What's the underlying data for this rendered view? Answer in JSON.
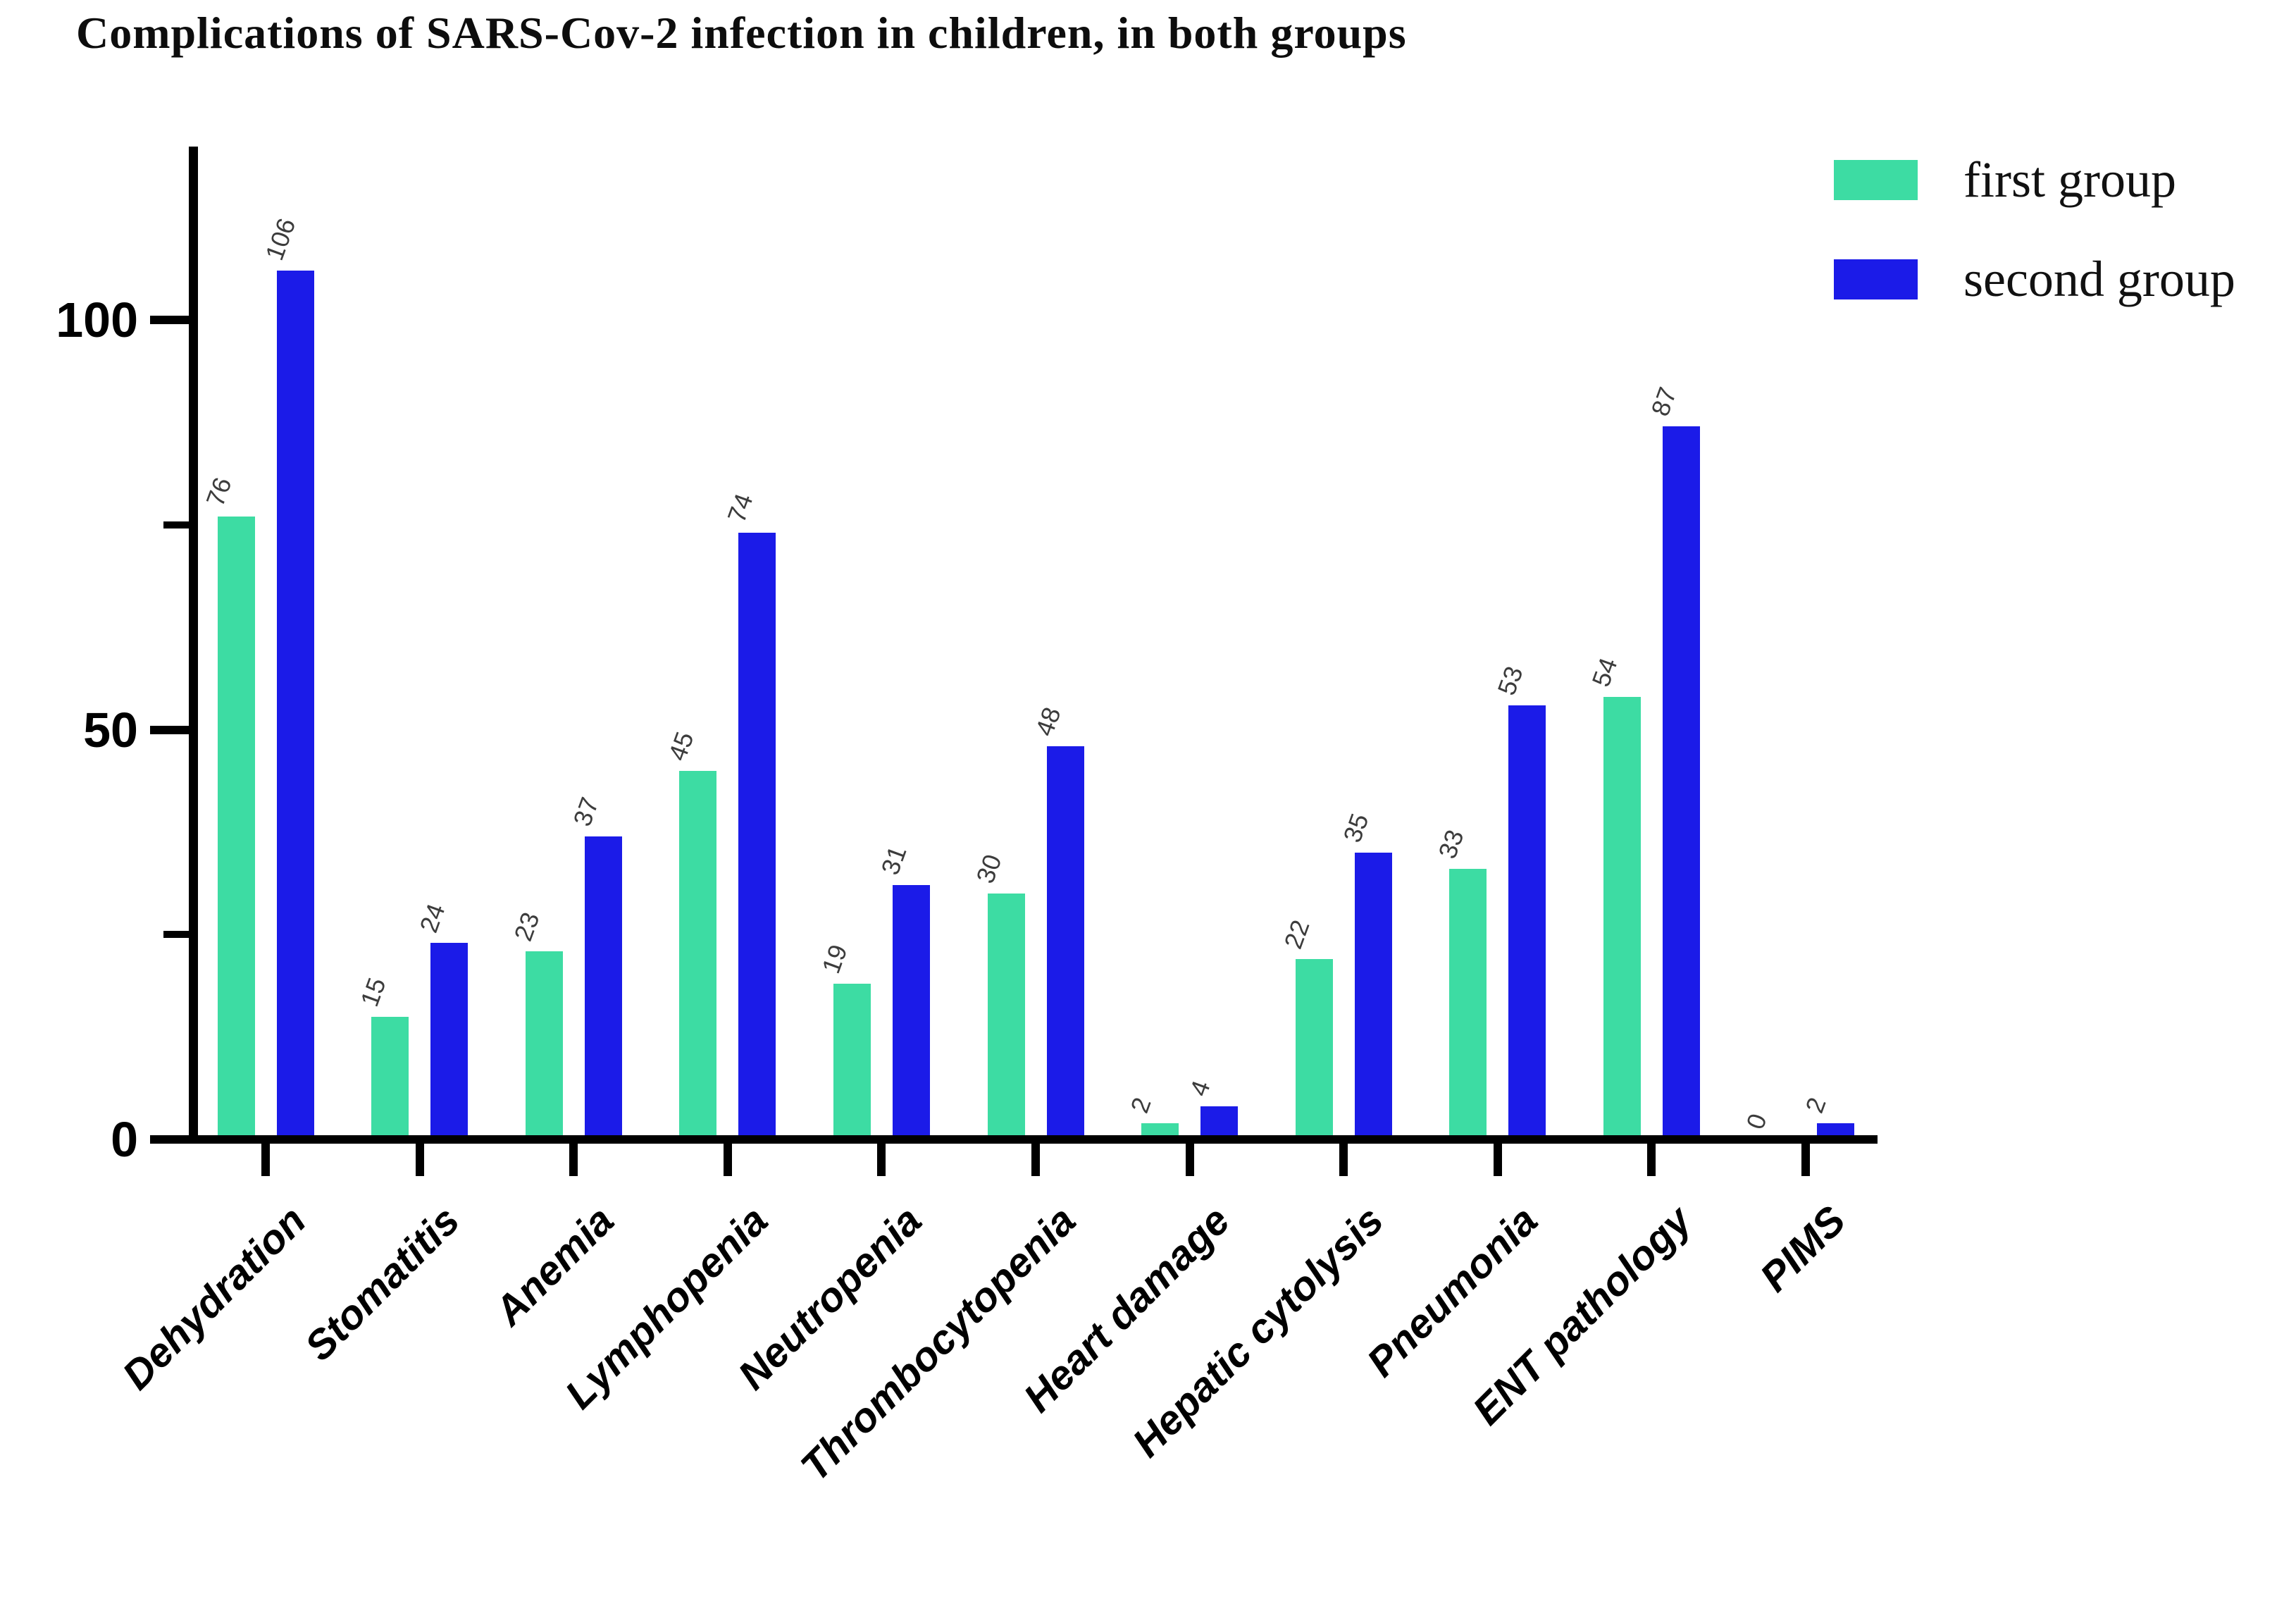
{
  "title": "Complications of SARS-Cov-2 infection in children, in both groups",
  "legend": [
    {
      "label": "first group",
      "color": "#3DDCA3"
    },
    {
      "label": "second group",
      "color": "#1B1BE8"
    }
  ],
  "y_axis": {
    "tick_labels": [
      "0",
      "50",
      "100"
    ]
  },
  "chart_data": {
    "type": "bar",
    "title": "Complications of SARS-Cov-2 infection in children, in both groups",
    "categories": [
      "Dehydration",
      "Stomatitis",
      "Anemia",
      "Lymphopenia",
      "Neutropenia",
      "Thrombocytopenia",
      "Heart damage",
      "Hepatic cytolysis",
      "Pneumonia",
      "ENT pathology",
      "PIMS"
    ],
    "series": [
      {
        "name": "first group",
        "color": "#3DDCA3",
        "values": [
          76,
          15,
          23,
          45,
          19,
          30,
          2,
          22,
          33,
          54,
          0
        ]
      },
      {
        "name": "second group",
        "color": "#1B1BE8",
        "values": [
          106,
          24,
          37,
          74,
          31,
          48,
          4,
          35,
          53,
          87,
          2
        ]
      }
    ],
    "xlabel": "",
    "ylabel": "",
    "ylim": [
      0,
      121
    ],
    "yticks_major": [
      0,
      50,
      100
    ],
    "yticks_minor": [
      25,
      75
    ],
    "grid": false,
    "bar_value_labels": true,
    "legend_position": "top-right",
    "value_label_color": "#3c3c3c",
    "axis_color": "#000000"
  }
}
